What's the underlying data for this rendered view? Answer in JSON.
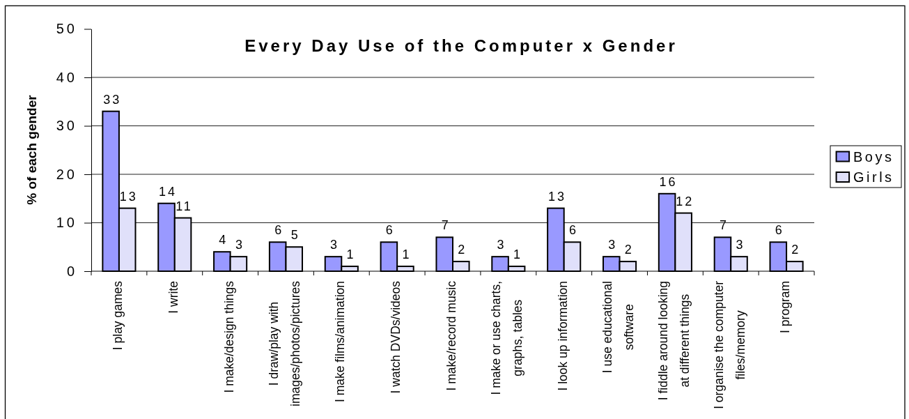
{
  "chart_data": {
    "type": "bar",
    "title": "Every Day Use of the Computer x Gender",
    "ylabel": "% of each gender",
    "categories": [
      "I play games",
      "I write",
      "I make/design things",
      "I draw/play with images/photos/pictures",
      "I make films/animation",
      "I watch DVDs/videos",
      "I make/record music",
      "I make or use charts, graphs, tables",
      "I look up information",
      "I use educational software",
      "I fiddle around looking at different things",
      "I organise the computer files/memory",
      "I program"
    ],
    "series": [
      {
        "name": "Boys",
        "color": "#9999ff",
        "values": [
          33,
          14,
          4,
          6,
          3,
          6,
          7,
          3,
          13,
          3,
          16,
          7,
          6
        ]
      },
      {
        "name": "Girls",
        "color": "#e0e0fa",
        "values": [
          13,
          11,
          3,
          5,
          1,
          1,
          2,
          1,
          6,
          2,
          12,
          3,
          2
        ]
      }
    ],
    "ylim": [
      0,
      50
    ],
    "yticks": [
      0,
      10,
      20,
      30,
      40,
      50
    ],
    "grid": "y",
    "legend": "right",
    "data_labels": true
  }
}
